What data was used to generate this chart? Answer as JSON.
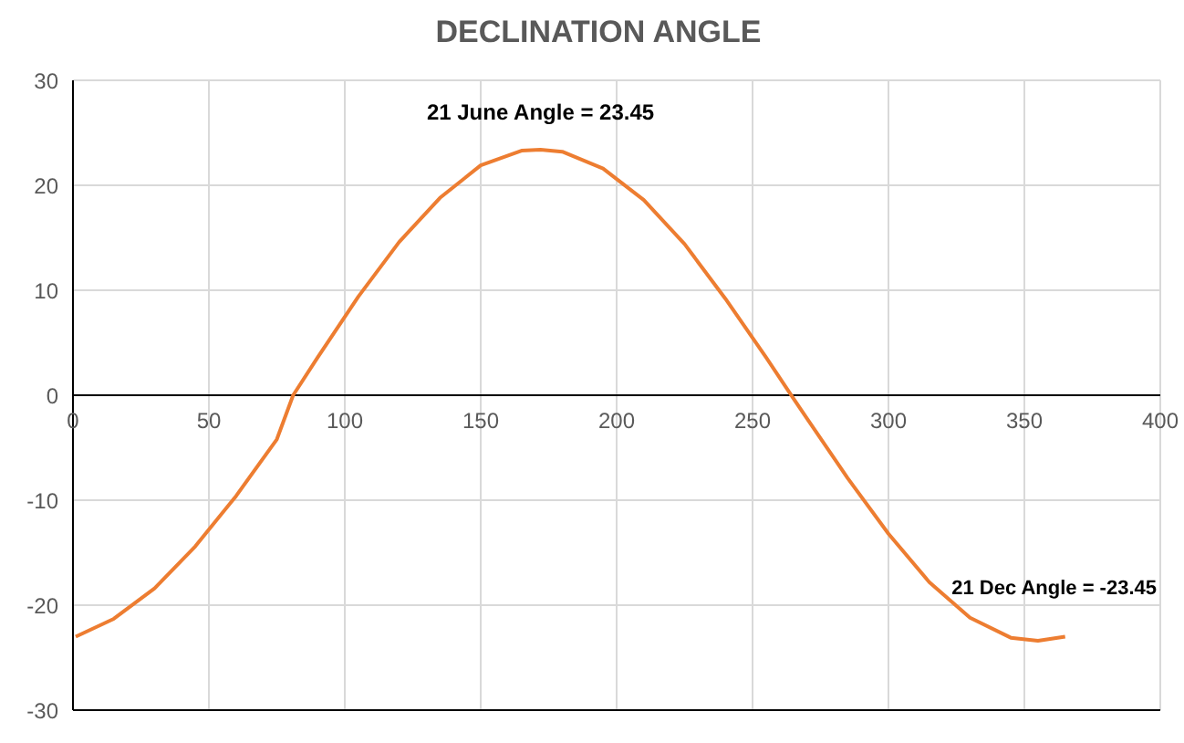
{
  "chart_data": {
    "type": "line",
    "title": "DECLINATION ANGLE",
    "x": [
      1,
      15,
      30,
      45,
      60,
      75,
      81,
      90,
      105,
      120,
      135,
      150,
      165,
      172,
      180,
      195,
      210,
      225,
      240,
      255,
      265,
      270,
      285,
      300,
      315,
      330,
      345,
      355,
      365
    ],
    "series": [
      {
        "color": "#ed7d31",
        "values": [
          -23.0,
          -21.3,
          -18.4,
          -14.4,
          -9.6,
          -4.2,
          0,
          3.6,
          9.4,
          14.6,
          18.8,
          21.9,
          23.3,
          23.4,
          23.2,
          21.6,
          18.6,
          14.4,
          9.2,
          3.6,
          -0.3,
          -2.2,
          -7.9,
          -13.2,
          -17.8,
          -21.2,
          -23.1,
          -23.4,
          -23.0
        ]
      }
    ],
    "xlim": [
      0,
      400
    ],
    "xticks": [
      0,
      50,
      100,
      150,
      200,
      250,
      300,
      350,
      400
    ],
    "ylim": [
      -30,
      30
    ],
    "yticks": [
      -30,
      -20,
      -10,
      0,
      10,
      20,
      30
    ],
    "grid": true,
    "marker": "none",
    "line_style": "solid",
    "annotations": [
      {
        "text": "21 June Angle = 23.45",
        "x": 172,
        "y": 23.45
      },
      {
        "text": "21 Dec Angle = -23.45",
        "x": 355,
        "y": -23.45
      }
    ]
  }
}
